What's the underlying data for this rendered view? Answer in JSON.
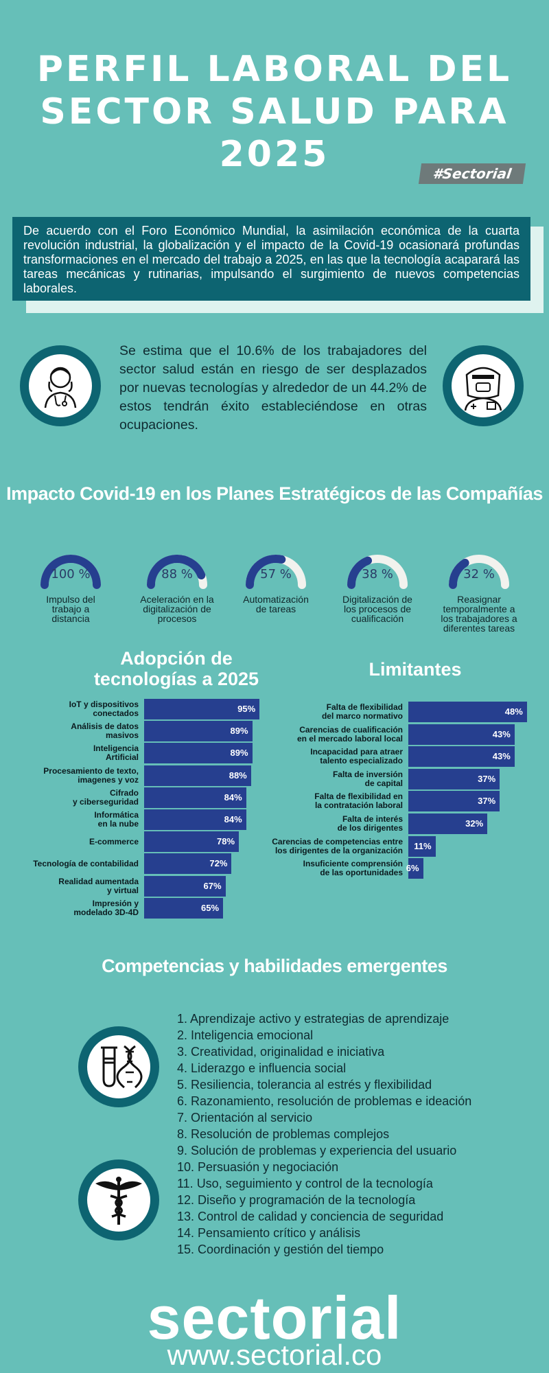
{
  "header": {
    "title_lines": [
      "PERFIL LABORAL DEL",
      "SECTOR SALUD PARA",
      "2025"
    ],
    "tag": "#Sectorial"
  },
  "intro": {
    "text": "De acuerdo con el Foro Económico Mundial, la asimilación económica de la cuarta revolución industrial, la globalización y el impacto de la Covid-19 ocasionará profundas transformaciones en el mercado del trabajo a 2025, en las que la tecnología acaparará las tareas mecánicas y rutinarias, impulsando el surgimiento de nuevos competencias laborales."
  },
  "estimate": {
    "text": "Se estima que el 10.6% de los trabajadores del sector salud están en riesgo de ser desplazados por nuevas tecnologías y alrededor de un 44.2% de estos tendrán éxito estableciéndose en otras ocupaciones.",
    "left_icon": "nurse-icon",
    "right_icon": "doctor-face-shield-icon"
  },
  "covid": {
    "title": "Impacto Covid-19 en los Planes Estratégicos de las Compañías",
    "gauges": [
      {
        "value": 100,
        "pct_label": "100 %",
        "label": "Impulso del\ntrabajo a\ndistancia"
      },
      {
        "value": 88,
        "pct_label": "88 %",
        "label": "Aceleración en la\ndigitalización de\nprocesos"
      },
      {
        "value": 57,
        "pct_label": "57 %",
        "label": "Automatización\nde tareas"
      },
      {
        "value": 38,
        "pct_label": "38 %",
        "label": "Digitalización de\nlos procesos de\ncualificación"
      },
      {
        "value": 32,
        "pct_label": "32 %",
        "label": "Reasignar\ntemporalmente a\nlos trabajadores a\ndiferentes tareas"
      }
    ],
    "colors": {
      "fill": "#263f8f",
      "track": "#f2f2ee"
    }
  },
  "chart_data": [
    {
      "type": "bar",
      "title": "Adopción de\ntecnologías a 2025",
      "categories": [
        "IoT y dispositivos\nconectados",
        "Análisis de datos\nmasivos",
        "Inteligencia\nArtificial",
        "Procesamiento de texto,\nimagenes y voz",
        "Cifrado\ny ciberseguridad",
        "Informática\nen la nube",
        "E-commerce",
        "Tecnología de contabilidad",
        "Realidad aumentada\ny virtual",
        "Impresión y\nmodelado 3D-4D"
      ],
      "values": [
        95,
        89,
        89,
        88,
        84,
        84,
        78,
        72,
        67,
        65
      ],
      "value_labels": [
        "95%",
        "89%",
        "89%",
        "88%",
        "84%",
        "84%",
        "78%",
        "72%",
        "67%",
        "65%"
      ],
      "xlim": [
        0,
        100
      ],
      "color": "#263f8f"
    },
    {
      "type": "bar",
      "title": "Limitantes",
      "categories": [
        "Falta de flexibilidad\ndel marco normativo",
        "Carencias de cualificación\nen el mercado laboral local",
        "Incapacidad para atraer\ntalento especializado",
        "Falta de inversión\nde capital",
        "Falta de flexibilidad en\nla contratación laboral",
        "Falta de interés\nde los dirigentes",
        "Carencias de competencias entre\nlos dirigentes de la organización",
        "Insuficiente comprensión\nde las oportunidades"
      ],
      "values": [
        48,
        43,
        43,
        37,
        37,
        32,
        11,
        6
      ],
      "value_labels": [
        "48%",
        "43%",
        "43%",
        "37%",
        "37%",
        "32%",
        "11%",
        "6%"
      ],
      "xlim": [
        0,
        50
      ],
      "color": "#263f8f"
    }
  ],
  "skills": {
    "title": "Competencias y habilidades emergentes",
    "items": [
      "1. Aprendizaje activo y estrategias de aprendizaje",
      "2. Inteligencia emocional",
      "3. Creatividad, originalidad e iniciativa",
      "4. Liderazgo e influencia social",
      "5. Resiliencia, tolerancia al estrés y flexibilidad",
      "6. Razonamiento, resolución de problemas e ideación",
      "7. Orientación al servicio",
      "8. Resolución de problemas complejos",
      "9. Solución de problemas y experiencia del usuario",
      "10. Persuasión y negociación",
      "11. Uso, seguimiento y control de la tecnología",
      "12. Diseño y programación de la tecnología",
      "13. Control de calidad y conciencia de seguridad",
      "14. Pensamiento crítico y análisis",
      "15. Coordinación y gestión del tiempo"
    ],
    "icons": [
      "test-tube-dna-icon",
      "caduceus-icon"
    ]
  },
  "footer": {
    "logo": "sectorial",
    "url": "www.sectorial.co"
  }
}
